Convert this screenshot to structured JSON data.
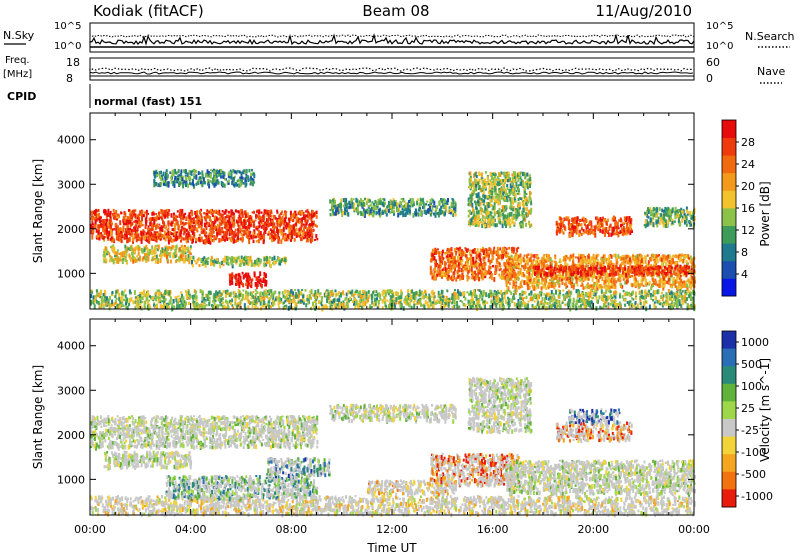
{
  "header": {
    "station": "Kodiak (fitACF)",
    "beam": "Beam 08",
    "date": "11/Aug/2010"
  },
  "top_panels": {
    "nsky_label": "N.Sky",
    "nsky_ticks": [
      "10^5",
      "10^0"
    ],
    "nsearch_label": "N.Search",
    "nsearch_ticks": [
      "10^5",
      "10^0"
    ],
    "freq_label_1": "Freq.",
    "freq_label_2": "[MHz]",
    "freq_ticks": [
      "18",
      "8"
    ],
    "nave_label": "Nave",
    "nave_ticks": [
      "60",
      "0"
    ],
    "cpid_label": "CPID",
    "cpid_value": "normal (fast) 151"
  },
  "chart_data": [
    {
      "type": "heatmap",
      "name": "power",
      "ylabel": "Slant Range [km]",
      "ylim": [
        200,
        4600
      ],
      "yticks": [
        "1000",
        "2000",
        "3000",
        "4000"
      ],
      "ytick_values": [
        1000,
        2000,
        3000,
        4000
      ],
      "xlim_hours": [
        0,
        24
      ],
      "colorbar": {
        "label": "Power [dB]",
        "ticks": [
          "4",
          "8",
          "12",
          "16",
          "20",
          "24",
          "28"
        ],
        "colors": [
          "#0a16e6",
          "#1a4fb0",
          "#1f7a8e",
          "#3f9b5a",
          "#8cc24a",
          "#f2c12e",
          "#f39a1c",
          "#f26a10",
          "#ee3a0c",
          "#e80b0b"
        ]
      },
      "bands": [
        {
          "t": [
            0.0,
            9.0
          ],
          "r": [
            1750,
            2450
          ],
          "level": 0.85
        },
        {
          "t": [
            0.5,
            4.0
          ],
          "r": [
            1300,
            1650
          ],
          "level": 0.55
        },
        {
          "t": [
            4.0,
            7.8
          ],
          "r": [
            1200,
            1400
          ],
          "level": 0.45
        },
        {
          "t": [
            9.5,
            14.5
          ],
          "r": [
            2350,
            2700
          ],
          "level": 0.35
        },
        {
          "t": [
            13.5,
            17.0
          ],
          "r": [
            900,
            1600
          ],
          "level": 0.75
        },
        {
          "t": [
            16.5,
            24.0
          ],
          "r": [
            700,
            1450
          ],
          "level": 0.65
        },
        {
          "t": [
            17.5,
            24.0
          ],
          "r": [
            1000,
            1200
          ],
          "level": 0.9
        },
        {
          "t": [
            18.5,
            21.5
          ],
          "r": [
            1900,
            2300
          ],
          "level": 0.8
        },
        {
          "t": [
            22.0,
            24.0
          ],
          "r": [
            2100,
            2500
          ],
          "level": 0.4
        },
        {
          "t": [
            5.5,
            7.0
          ],
          "r": [
            750,
            1050
          ],
          "level": 0.95
        },
        {
          "t": [
            0.0,
            24.0
          ],
          "r": [
            250,
            650
          ],
          "level": 0.45
        },
        {
          "t": [
            15.0,
            17.5
          ],
          "r": [
            2100,
            3300
          ],
          "level": 0.45
        },
        {
          "t": [
            2.5,
            6.5
          ],
          "r": [
            3000,
            3350
          ],
          "level": 0.3
        }
      ]
    },
    {
      "type": "heatmap",
      "name": "velocity",
      "ylabel": "Slant Range [km]",
      "ylim": [
        200,
        4600
      ],
      "yticks": [
        "1000",
        "2000",
        "3000",
        "4000"
      ],
      "ytick_values": [
        1000,
        2000,
        3000,
        4000
      ],
      "xlim_hours": [
        0,
        24
      ],
      "colorbar": {
        "label": "Velocity [m s^-1]",
        "ticks": [
          "1000",
          "500",
          "100",
          "25",
          "-25",
          "-100",
          "-500",
          "-1000"
        ],
        "colors": [
          "#1b2fa8",
          "#2a6fb5",
          "#2a8a7a",
          "#5fb33a",
          "#9ed84a",
          "#c8c8c8",
          "#f2d33a",
          "#f5a61f",
          "#f2720f",
          "#e81c0b"
        ]
      },
      "bands": [
        {
          "t": [
            0.0,
            9.0
          ],
          "r": [
            1750,
            2450
          ],
          "v": 0.5
        },
        {
          "t": [
            0.5,
            4.0
          ],
          "r": [
            1300,
            1650
          ],
          "v": 0.5
        },
        {
          "t": [
            9.5,
            14.5
          ],
          "r": [
            2350,
            2700
          ],
          "v": 0.5
        },
        {
          "t": [
            0.0,
            24.0
          ],
          "r": [
            250,
            650
          ],
          "v": 0.62
        },
        {
          "t": [
            3.0,
            9.0
          ],
          "r": [
            600,
            1100
          ],
          "v": 0.32
        },
        {
          "t": [
            13.5,
            17.0
          ],
          "r": [
            900,
            1600
          ],
          "v": 0.85
        },
        {
          "t": [
            16.5,
            24.0
          ],
          "r": [
            700,
            1450
          ],
          "v": 0.5
        },
        {
          "t": [
            18.5,
            21.5
          ],
          "r": [
            1900,
            2300
          ],
          "v": 0.85
        },
        {
          "t": [
            19.0,
            21.0
          ],
          "r": [
            2300,
            2600
          ],
          "v": 0.12
        },
        {
          "t": [
            7.0,
            9.5
          ],
          "r": [
            1100,
            1500
          ],
          "v": 0.25
        },
        {
          "t": [
            11.0,
            14.5
          ],
          "r": [
            700,
            1000
          ],
          "v": 0.65
        },
        {
          "t": [
            15.0,
            17.5
          ],
          "r": [
            2100,
            3300
          ],
          "v": 0.5
        }
      ]
    }
  ],
  "x_axis": {
    "ticks": [
      "00:00",
      "04:00",
      "08:00",
      "12:00",
      "16:00",
      "20:00",
      "00:00"
    ],
    "label": "Time UT"
  }
}
